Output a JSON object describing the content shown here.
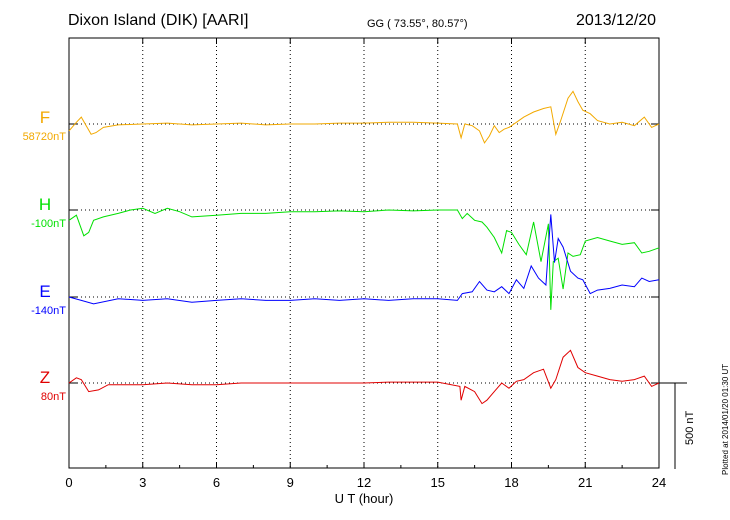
{
  "header": {
    "station": "Dixon Island (DIK)  [AARI]",
    "coords": "GG ( 73.55°,  80.57°)",
    "date": "2013/12/20"
  },
  "plotted_note": "Plotted at 2014/01/20 01:30 UT",
  "chart_data": {
    "type": "line",
    "xlabel": "U T (hour)",
    "xlim": [
      0,
      24
    ],
    "xticks": [
      0,
      3,
      6,
      9,
      12,
      15,
      18,
      21,
      24
    ],
    "scale_bar_label": "500 nT",
    "scale_bar_nT": 500,
    "series": [
      {
        "name": "F",
        "baseline_label": "58720nT",
        "color": "#f2a900",
        "points": [
          [
            0,
            -40
          ],
          [
            0.3,
            10
          ],
          [
            0.5,
            40
          ],
          [
            0.7,
            -10
          ],
          [
            0.9,
            -60
          ],
          [
            1.1,
            -50
          ],
          [
            1.4,
            -20
          ],
          [
            2,
            -5
          ],
          [
            3,
            0
          ],
          [
            4,
            5
          ],
          [
            5,
            -5
          ],
          [
            6,
            0
          ],
          [
            7,
            5
          ],
          [
            8,
            -5
          ],
          [
            9,
            0
          ],
          [
            10,
            0
          ],
          [
            11,
            5
          ],
          [
            12,
            5
          ],
          [
            13,
            10
          ],
          [
            14,
            10
          ],
          [
            15,
            5
          ],
          [
            15.8,
            0
          ],
          [
            15.95,
            -80
          ],
          [
            16.1,
            0
          ],
          [
            16.4,
            -10
          ],
          [
            16.7,
            -40
          ],
          [
            16.9,
            -110
          ],
          [
            17.1,
            -70
          ],
          [
            17.3,
            -10
          ],
          [
            17.5,
            -50
          ],
          [
            17.7,
            -30
          ],
          [
            17.9,
            -20
          ],
          [
            18.2,
            10
          ],
          [
            18.5,
            40
          ],
          [
            18.9,
            70
          ],
          [
            19.3,
            90
          ],
          [
            19.6,
            100
          ],
          [
            19.8,
            -60
          ],
          [
            20,
            20
          ],
          [
            20.3,
            150
          ],
          [
            20.5,
            190
          ],
          [
            20.7,
            130
          ],
          [
            20.9,
            80
          ],
          [
            21.2,
            60
          ],
          [
            21.5,
            20
          ],
          [
            22,
            0
          ],
          [
            22.5,
            10
          ],
          [
            23,
            -10
          ],
          [
            23.4,
            40
          ],
          [
            23.7,
            -20
          ],
          [
            24,
            0
          ]
        ]
      },
      {
        "name": "H",
        "baseline_label": "-100nT",
        "color": "#00e000",
        "points": [
          [
            0,
            -60
          ],
          [
            0.3,
            -30
          ],
          [
            0.6,
            -150
          ],
          [
            0.8,
            -130
          ],
          [
            1,
            -60
          ],
          [
            1.4,
            -40
          ],
          [
            2,
            -20
          ],
          [
            2.5,
            0
          ],
          [
            3,
            10
          ],
          [
            3.5,
            -20
          ],
          [
            4,
            10
          ],
          [
            4.5,
            -10
          ],
          [
            5,
            -40
          ],
          [
            6,
            -30
          ],
          [
            7,
            -20
          ],
          [
            8,
            -20
          ],
          [
            9,
            -10
          ],
          [
            10,
            -10
          ],
          [
            11,
            -5
          ],
          [
            12,
            -10
          ],
          [
            13,
            0
          ],
          [
            14,
            -5
          ],
          [
            15,
            0
          ],
          [
            15.8,
            0
          ],
          [
            16,
            -50
          ],
          [
            16.2,
            -20
          ],
          [
            16.5,
            -60
          ],
          [
            16.8,
            -70
          ],
          [
            17,
            -100
          ],
          [
            17.3,
            -160
          ],
          [
            17.6,
            -250
          ],
          [
            17.8,
            -120
          ],
          [
            18,
            -130
          ],
          [
            18.3,
            -200
          ],
          [
            18.6,
            -260
          ],
          [
            18.9,
            -70
          ],
          [
            19.2,
            -300
          ],
          [
            19.5,
            -80
          ],
          [
            19.6,
            -580
          ],
          [
            19.7,
            -300
          ],
          [
            19.9,
            -280
          ],
          [
            20.1,
            -460
          ],
          [
            20.3,
            -250
          ],
          [
            20.5,
            -270
          ],
          [
            20.8,
            -260
          ],
          [
            21,
            -180
          ],
          [
            21.5,
            -160
          ],
          [
            22,
            -180
          ],
          [
            22.5,
            -200
          ],
          [
            23,
            -190
          ],
          [
            23.3,
            -250
          ],
          [
            23.6,
            -240
          ],
          [
            24,
            -220
          ]
        ]
      },
      {
        "name": "E",
        "baseline_label": "-140nT",
        "color": "#0000ff",
        "points": [
          [
            0,
            0
          ],
          [
            0.5,
            -20
          ],
          [
            1,
            -40
          ],
          [
            2,
            -10
          ],
          [
            3,
            -20
          ],
          [
            4,
            -10
          ],
          [
            5,
            -30
          ],
          [
            6,
            -20
          ],
          [
            7,
            -10
          ],
          [
            8,
            -20
          ],
          [
            9,
            -20
          ],
          [
            10,
            -10
          ],
          [
            11,
            -20
          ],
          [
            12,
            -10
          ],
          [
            13,
            -20
          ],
          [
            14,
            -10
          ],
          [
            15,
            -10
          ],
          [
            15.8,
            -20
          ],
          [
            16,
            20
          ],
          [
            16.4,
            30
          ],
          [
            16.7,
            90
          ],
          [
            17,
            40
          ],
          [
            17.3,
            30
          ],
          [
            17.6,
            60
          ],
          [
            17.9,
            20
          ],
          [
            18.2,
            100
          ],
          [
            18.5,
            50
          ],
          [
            18.8,
            180
          ],
          [
            19.1,
            110
          ],
          [
            19.4,
            70
          ],
          [
            19.6,
            480
          ],
          [
            19.75,
            200
          ],
          [
            19.9,
            340
          ],
          [
            20.1,
            290
          ],
          [
            20.4,
            150
          ],
          [
            20.7,
            110
          ],
          [
            20.9,
            100
          ],
          [
            21.2,
            20
          ],
          [
            21.5,
            40
          ],
          [
            22,
            50
          ],
          [
            22.5,
            70
          ],
          [
            23,
            60
          ],
          [
            23.3,
            110
          ],
          [
            23.6,
            90
          ],
          [
            24,
            100
          ]
        ]
      },
      {
        "name": "Z",
        "baseline_label": "80nT",
        "color": "#e00000",
        "points": [
          [
            0,
            0
          ],
          [
            0.3,
            30
          ],
          [
            0.5,
            20
          ],
          [
            0.8,
            -50
          ],
          [
            1.2,
            -40
          ],
          [
            1.6,
            -10
          ],
          [
            2,
            -10
          ],
          [
            3,
            -10
          ],
          [
            4,
            0
          ],
          [
            5,
            -10
          ],
          [
            6,
            -10
          ],
          [
            7,
            0
          ],
          [
            8,
            0
          ],
          [
            9,
            0
          ],
          [
            10,
            0
          ],
          [
            11,
            0
          ],
          [
            12,
            0
          ],
          [
            13,
            5
          ],
          [
            14,
            5
          ],
          [
            15,
            5
          ],
          [
            15.9,
            -20
          ],
          [
            15.95,
            -100
          ],
          [
            16.1,
            -20
          ],
          [
            16.5,
            -50
          ],
          [
            16.8,
            -120
          ],
          [
            17,
            -100
          ],
          [
            17.3,
            -50
          ],
          [
            17.6,
            0
          ],
          [
            17.9,
            -30
          ],
          [
            18.2,
            10
          ],
          [
            18.5,
            20
          ],
          [
            18.9,
            60
          ],
          [
            19.3,
            80
          ],
          [
            19.6,
            -30
          ],
          [
            19.8,
            20
          ],
          [
            20.1,
            150
          ],
          [
            20.4,
            190
          ],
          [
            20.7,
            90
          ],
          [
            21,
            60
          ],
          [
            21.5,
            40
          ],
          [
            22,
            20
          ],
          [
            22.5,
            10
          ],
          [
            23,
            20
          ],
          [
            23.4,
            40
          ],
          [
            23.7,
            -20
          ],
          [
            24,
            0
          ]
        ]
      }
    ]
  }
}
